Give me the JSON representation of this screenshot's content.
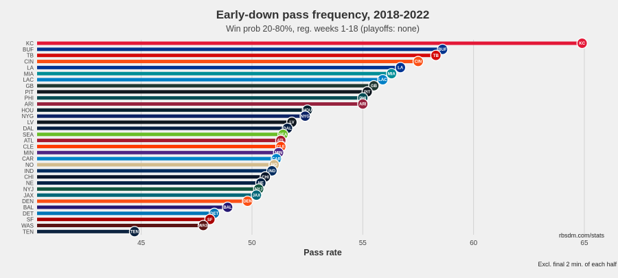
{
  "chart_data": {
    "type": "bar",
    "orientation": "horizontal",
    "title": "Early-down pass frequency, 2018-2022",
    "subtitle": "Win prob 20-80%, reg. weeks 1-18 (playoffs: none)",
    "xlabel": "Pass rate",
    "ylabel": "",
    "xlim": [
      40.3,
      65.9
    ],
    "xticks": [
      45,
      50,
      55,
      60,
      65
    ],
    "grid": true,
    "credit": "rbsdm.com/stats",
    "footnote": "Excl. final 2 min. of each half",
    "categories": [
      "KC",
      "BUF",
      "TB",
      "CIN",
      "LA",
      "MIA",
      "LAC",
      "GB",
      "PIT",
      "PHI",
      "ARI",
      "HOU",
      "NYG",
      "LV",
      "DAL",
      "SEA",
      "ATL",
      "CLE",
      "MIN",
      "CAR",
      "NO",
      "IND",
      "CHI",
      "NE",
      "NYJ",
      "JAX",
      "DEN",
      "BAL",
      "DET",
      "SF",
      "WAS",
      "TEN"
    ],
    "values": [
      64.9,
      58.6,
      58.3,
      57.5,
      56.7,
      56.3,
      55.9,
      55.5,
      55.2,
      55.0,
      55.0,
      52.5,
      52.4,
      51.8,
      51.6,
      51.4,
      51.3,
      51.3,
      51.2,
      51.1,
      51.0,
      50.9,
      50.6,
      50.4,
      50.3,
      50.2,
      49.8,
      48.9,
      48.3,
      48.1,
      47.8,
      44.7
    ],
    "colors": [
      "#e31837",
      "#00338d",
      "#d50a0a",
      "#fb4f14",
      "#003594",
      "#008e97",
      "#0080c6",
      "#203731",
      "#101820",
      "#004c54",
      "#97233f",
      "#03202f",
      "#0b2265",
      "#101820",
      "#041e42",
      "#69be28",
      "#a71930",
      "#ff3c00",
      "#4f2683",
      "#0085ca",
      "#d3bc8d",
      "#002c5f",
      "#0b162a",
      "#002244",
      "#125740",
      "#006778",
      "#fb4f14",
      "#241773",
      "#0076b6",
      "#aa0000",
      "#5a1414",
      "#0c2340"
    ]
  }
}
